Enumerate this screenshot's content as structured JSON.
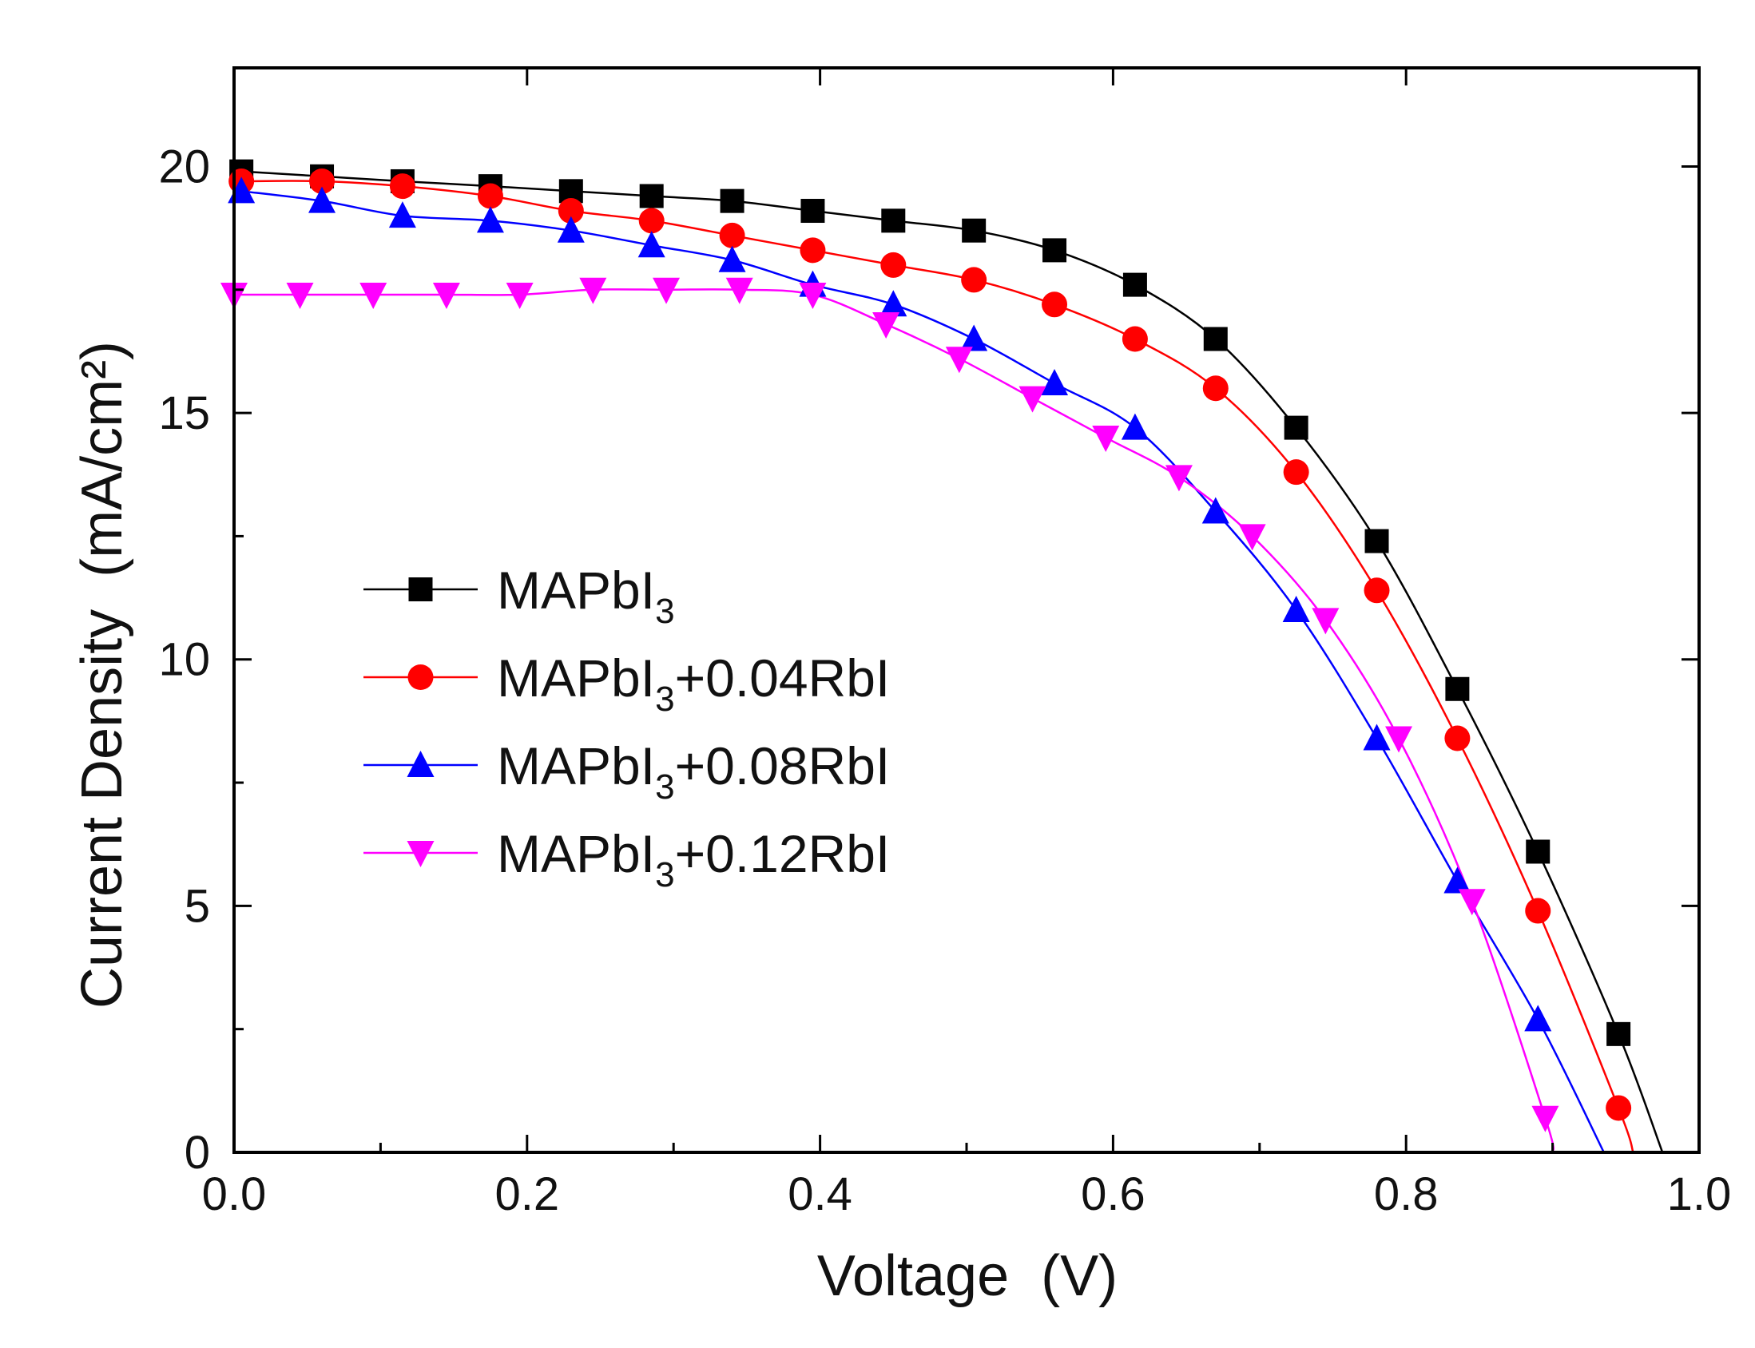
{
  "chart_data": {
    "type": "line",
    "xlabel": "Voltage  (V)",
    "ylabel": "Current Density  (mA/cm²)",
    "xlim": [
      0.0,
      1.0
    ],
    "ylim": [
      0,
      22
    ],
    "x_ticks": [
      "0.0",
      "0.2",
      "0.4",
      "0.6",
      "0.8",
      "1.0"
    ],
    "y_ticks": [
      "0",
      "5",
      "10",
      "15",
      "20"
    ],
    "grid": false,
    "legend_position": "left-middle",
    "series": [
      {
        "name": "MAPbI3",
        "label_main": "MAPbI",
        "label_sub": "3",
        "label_suffix": "",
        "color": "#000000",
        "marker": "square",
        "x": [
          0.005,
          0.06,
          0.115,
          0.175,
          0.23,
          0.285,
          0.34,
          0.395,
          0.45,
          0.505,
          0.56,
          0.615,
          0.67,
          0.725,
          0.78,
          0.835,
          0.89,
          0.945
        ],
        "y": [
          19.9,
          19.8,
          19.7,
          19.6,
          19.5,
          19.4,
          19.3,
          19.1,
          18.9,
          18.7,
          18.3,
          17.6,
          16.5,
          14.7,
          12.4,
          9.4,
          6.1,
          2.4
        ],
        "curve_end": [
          0.975,
          0
        ]
      },
      {
        "name": "MAPbI3+0.04RbI",
        "label_main": "MAPbI",
        "label_sub": "3",
        "label_suffix": "+0.04RbI",
        "color": "#ff0000",
        "marker": "circle",
        "x": [
          0.005,
          0.06,
          0.115,
          0.175,
          0.23,
          0.285,
          0.34,
          0.395,
          0.45,
          0.505,
          0.56,
          0.615,
          0.67,
          0.725,
          0.78,
          0.835,
          0.89,
          0.945
        ],
        "y": [
          19.7,
          19.7,
          19.6,
          19.4,
          19.1,
          18.9,
          18.6,
          18.3,
          18.0,
          17.7,
          17.2,
          16.5,
          15.5,
          13.8,
          11.4,
          8.4,
          4.9,
          0.9
        ],
        "curve_end": [
          0.955,
          0
        ]
      },
      {
        "name": "MAPbI3+0.08RbI",
        "label_main": "MAPbI",
        "label_sub": "3",
        "label_suffix": "+0.08RbI",
        "color": "#0000ff",
        "marker": "triangle-up",
        "x": [
          0.005,
          0.06,
          0.115,
          0.175,
          0.23,
          0.285,
          0.34,
          0.395,
          0.45,
          0.505,
          0.56,
          0.615,
          0.67,
          0.725,
          0.78,
          0.835,
          0.89
        ],
        "y": [
          19.5,
          19.3,
          19.0,
          18.9,
          18.7,
          18.4,
          18.1,
          17.6,
          17.2,
          16.5,
          15.6,
          14.7,
          13.0,
          11.0,
          8.4,
          5.5,
          2.7
        ],
        "curve_end": [
          0.935,
          0
        ]
      },
      {
        "name": "MAPbI3+0.12RbI",
        "label_main": "MAPbI",
        "label_sub": "3",
        "label_suffix": "+0.12RbI",
        "color": "#ff00ff",
        "marker": "triangle-down",
        "x": [
          0.0,
          0.045,
          0.095,
          0.145,
          0.195,
          0.245,
          0.295,
          0.345,
          0.395,
          0.445,
          0.495,
          0.545,
          0.595,
          0.645,
          0.695,
          0.745,
          0.795,
          0.845,
          0.895
        ],
        "y": [
          17.4,
          17.4,
          17.4,
          17.4,
          17.4,
          17.5,
          17.5,
          17.5,
          17.4,
          16.8,
          16.1,
          15.3,
          14.5,
          13.7,
          12.5,
          10.8,
          8.4,
          5.1,
          0.7
        ],
        "curve_end": [
          0.9,
          0
        ]
      }
    ]
  }
}
